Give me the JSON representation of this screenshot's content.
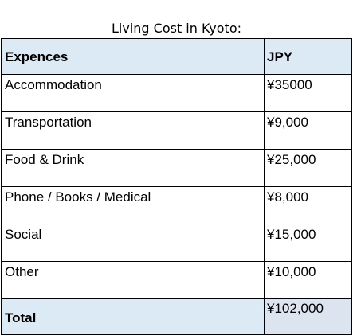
{
  "caption": "Living Cost in Kyoto:",
  "table": {
    "headers": {
      "category": "Expences",
      "amount": "JPY"
    },
    "rows": [
      {
        "category": "Accommodation",
        "amount": "¥35000"
      },
      {
        "category": "Transportation",
        "amount": "¥9,000"
      },
      {
        "category": "Food & Drink",
        "amount": "¥25,000"
      },
      {
        "category": "Phone / Books / Medical",
        "amount": "¥8,000"
      },
      {
        "category": "Social",
        "amount": "¥15,000"
      },
      {
        "category": "Other",
        "amount": "¥10,000"
      }
    ],
    "total": {
      "label": "Total",
      "amount": "¥102,000"
    }
  },
  "colors": {
    "header_fill": "#dbeaf5",
    "total_amount_fill": "#dce4ef",
    "border": "#000000"
  }
}
